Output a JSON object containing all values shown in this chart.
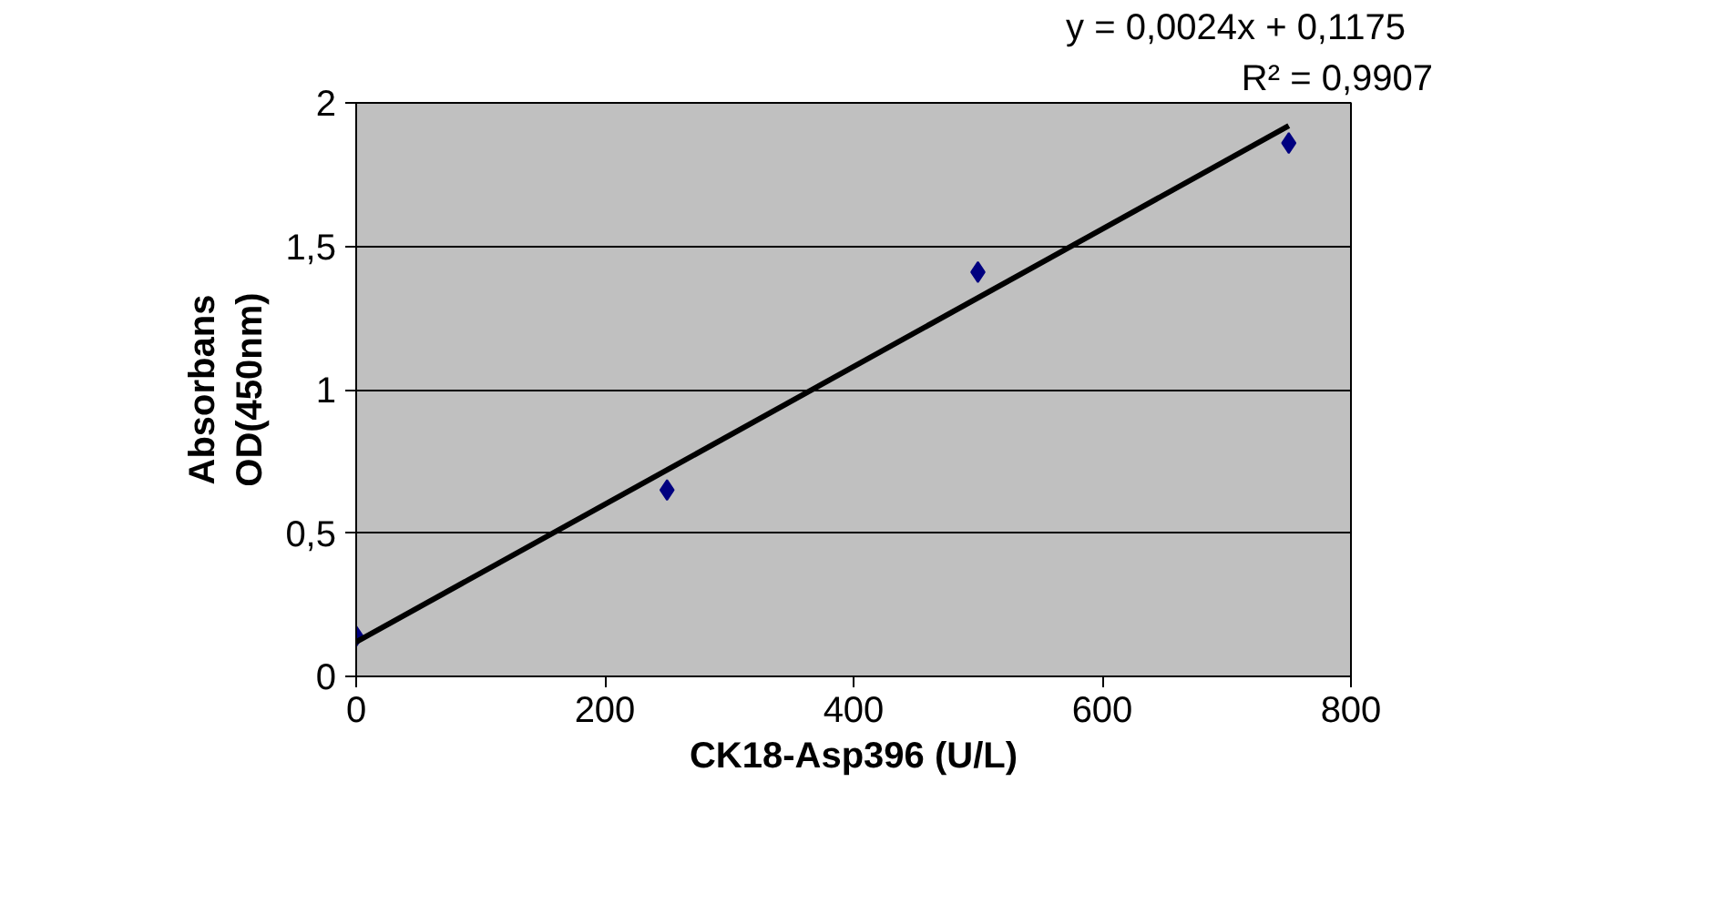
{
  "chart_data": {
    "type": "scatter",
    "xlabel": "CK18-Asp396 (U/L)",
    "ylabel": "Absorbans\nOD(450nm)",
    "x": [
      0,
      250,
      500,
      750
    ],
    "series": [
      {
        "color": "#000080",
        "values": [
          0.14,
          0.65,
          1.41,
          1.86
        ]
      },
      {
        "type": "line",
        "marker": "none",
        "color": "#000000",
        "x": [
          0,
          750
        ],
        "values": [
          0.12,
          1.92
        ]
      }
    ],
    "marker": "diamond",
    "grid": "y",
    "xlim": [
      0,
      800
    ],
    "xticks": [
      0,
      200,
      400,
      600,
      800
    ],
    "ylim": [
      0,
      2
    ],
    "yticks": [
      0,
      {
        "value": 0.5,
        "label": "0,5"
      },
      1,
      {
        "value": 1.5,
        "label": "1,5"
      },
      2
    ],
    "annotations": [
      "y = 0,0024x + 0,1175",
      "R² = 0,9907"
    ]
  }
}
